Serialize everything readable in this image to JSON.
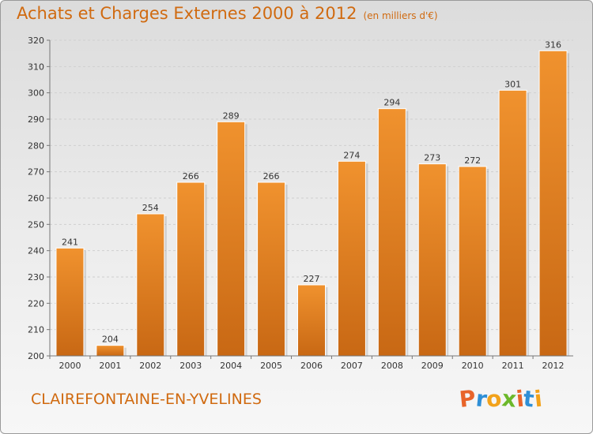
{
  "header": {
    "title": "Achats et Charges Externes 2000 à 2012",
    "unit": "(en milliers d'€)"
  },
  "footer": {
    "commune": "CLAIREFONTAINE-EN-YVELINES",
    "logo": "Proxiti",
    "logo_colors": [
      "#e8642a",
      "#2f8fd6",
      "#f2a21b",
      "#6cb82a",
      "#e8642a",
      "#2f8fd6",
      "#f2a21b"
    ]
  },
  "chart_data": {
    "type": "bar",
    "categories": [
      "2000",
      "2001",
      "2002",
      "2003",
      "2004",
      "2005",
      "2006",
      "2007",
      "2008",
      "2009",
      "2010",
      "2011",
      "2012"
    ],
    "values": [
      241,
      204,
      254,
      266,
      289,
      266,
      227,
      274,
      294,
      273,
      272,
      301,
      316
    ],
    "title": "Achats et Charges Externes 2000 à 2012",
    "xlabel": "",
    "ylabel": "",
    "ylim": [
      200,
      320
    ],
    "yticks": [
      200,
      210,
      220,
      230,
      240,
      250,
      260,
      270,
      280,
      290,
      300,
      310,
      320
    ],
    "grid": true,
    "legend": "none",
    "bar_color": "#f0922e",
    "bar_color_dark": "#c86814"
  }
}
